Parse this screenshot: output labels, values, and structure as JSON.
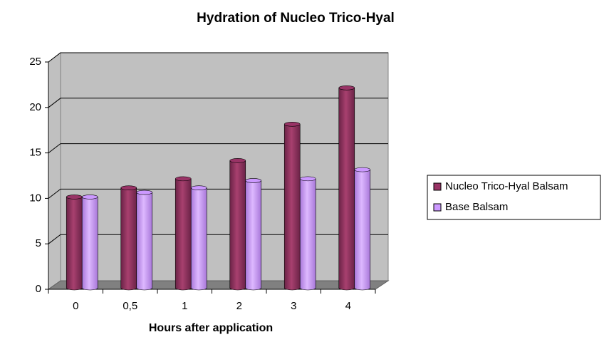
{
  "chart_data": {
    "type": "bar3d",
    "title": "Hydration of Nucleo Trico-Hyal",
    "x_label": "Hours after application",
    "categories": [
      "0",
      "0,5",
      "1",
      "2",
      "3",
      "4"
    ],
    "series": [
      {
        "name": "Nucleo Trico-Hyal Balsam",
        "color": "#993366",
        "values": [
          10,
          11,
          12,
          14,
          18,
          22
        ]
      },
      {
        "name": "Base Balsam",
        "color": "#cc99ff",
        "values": [
          10,
          10.5,
          11,
          11.8,
          12,
          13
        ]
      }
    ],
    "ylim": [
      0,
      25
    ],
    "yticks": [
      0,
      5,
      10,
      15,
      20,
      25
    ],
    "grid": true,
    "legend": "right"
  }
}
